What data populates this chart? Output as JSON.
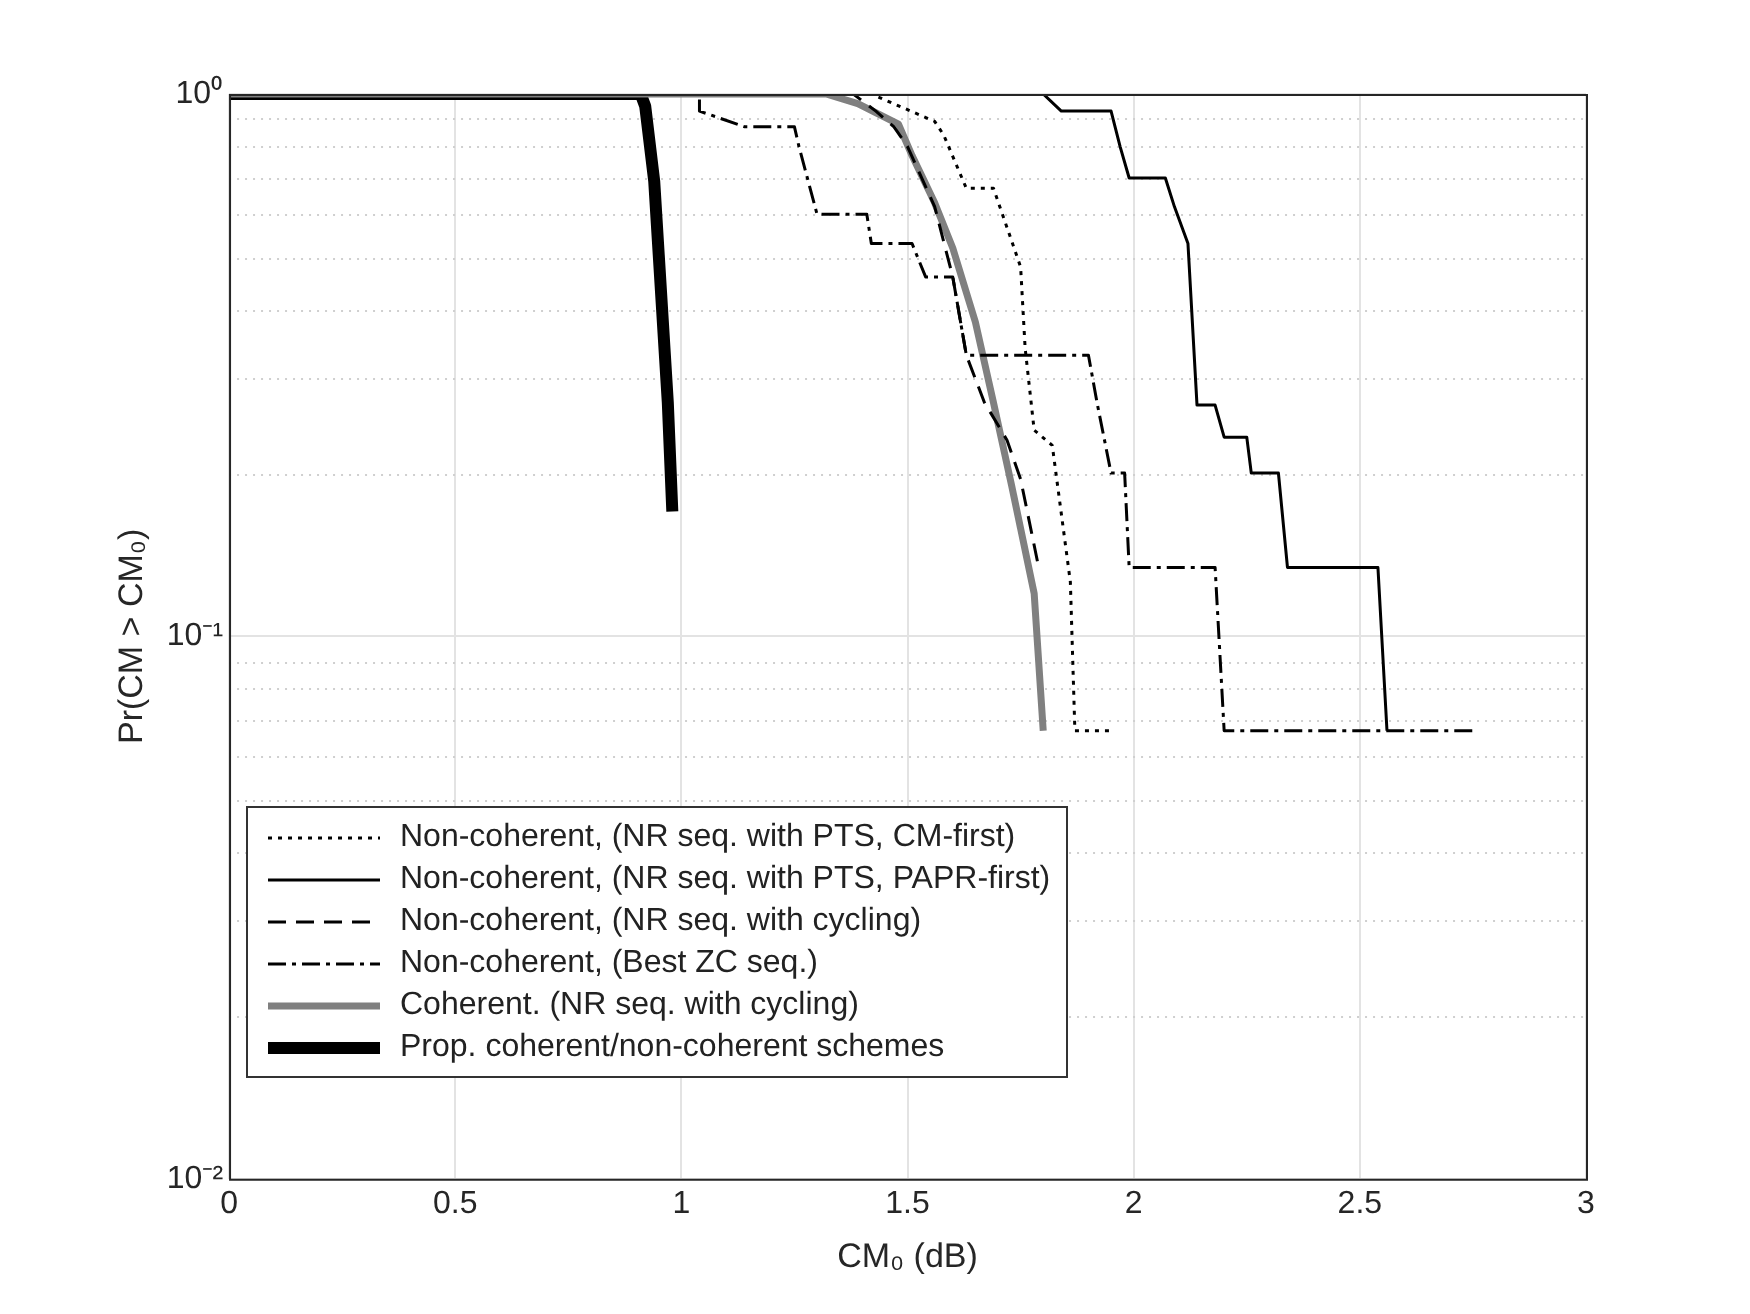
{
  "chart_data": {
    "type": "line",
    "xlabel": "CM₀ (dB)",
    "ylabel": "Pr(CM > CM₀)",
    "xlim": [
      0,
      3
    ],
    "xticks": [
      0,
      0.5,
      1,
      1.5,
      2,
      2.5,
      3
    ],
    "ylim": [
      0.01,
      1
    ],
    "yticks": [
      {
        "value": 0.01,
        "label": "10⁻²"
      },
      {
        "value": 0.1,
        "label": "10⁻¹"
      },
      {
        "value": 1,
        "label": "10⁰"
      }
    ],
    "log": "y",
    "grid": true,
    "legend": "bottom left",
    "marker": "none",
    "series": [
      {
        "name": "Non-coherent, (NR seq. with PTS, CM-first)",
        "color": "#000000",
        "line_style": "dotted",
        "x": [
          0,
          1.42,
          1.56,
          1.58,
          1.63,
          1.69,
          1.75,
          1.76,
          1.78,
          1.82,
          1.86,
          1.87,
          1.95
        ],
        "values": [
          1,
          1,
          0.89,
          0.84,
          0.67,
          0.67,
          0.48,
          0.34,
          0.24,
          0.225,
          0.126,
          0.067,
          0.067
        ]
      },
      {
        "name": "Non-coherent, (NR seq. with PTS, PAPR-first)",
        "color": "#000000",
        "line_style": "solid",
        "x": [
          0,
          1.8,
          1.84,
          1.95,
          1.97,
          1.99,
          2.07,
          2.09,
          2.12,
          2.14,
          2.18,
          2.2,
          2.25,
          2.26,
          2.32,
          2.34,
          2.54,
          2.56
        ],
        "values": [
          1,
          1,
          0.93,
          0.93,
          0.8,
          0.7,
          0.7,
          0.62,
          0.53,
          0.267,
          0.267,
          0.233,
          0.233,
          0.2,
          0.2,
          0.134,
          0.134,
          0.067
        ]
      },
      {
        "name": "Non-coherent, (NR seq. with cycling)",
        "color": "#000000",
        "line_style": "dashed",
        "x": [
          0,
          1.38,
          1.43,
          1.47,
          1.5,
          1.56,
          1.6,
          1.63,
          1.67,
          1.72,
          1.75,
          1.79
        ],
        "values": [
          1,
          1,
          0.93,
          0.87,
          0.8,
          0.62,
          0.46,
          0.33,
          0.27,
          0.23,
          0.195,
          0.134
        ]
      },
      {
        "name": "Non-coherent, (Best ZC seq.)",
        "color": "#000000",
        "line_style": "dashdot",
        "x": [
          0,
          1.04,
          1.04,
          1.14,
          1.25,
          1.26,
          1.3,
          1.41,
          1.42,
          1.51,
          1.54,
          1.6,
          1.63,
          1.9,
          1.92,
          1.95,
          1.98,
          1.99,
          2.18,
          2.2,
          2.75
        ],
        "values": [
          1,
          1,
          0.93,
          0.87,
          0.87,
          0.8,
          0.6,
          0.6,
          0.53,
          0.53,
          0.46,
          0.46,
          0.33,
          0.33,
          0.267,
          0.2,
          0.2,
          0.134,
          0.134,
          0.067,
          0.067
        ]
      },
      {
        "name": "Coherent. (NR seq. with cycling)",
        "color": "#808080",
        "line_style": "solid",
        "x": [
          0,
          1.32,
          1.39,
          1.48,
          1.51,
          1.56,
          1.6,
          1.65,
          1.69,
          1.73,
          1.78,
          1.8
        ],
        "values": [
          1,
          1,
          0.96,
          0.88,
          0.77,
          0.63,
          0.52,
          0.38,
          0.27,
          0.19,
          0.12,
          0.067
        ]
      },
      {
        "name": "Prop. coherent/non-coherent schemes",
        "color": "#000000",
        "line_style": "solid",
        "x": [
          0,
          0.91,
          0.92,
          0.94,
          0.97,
          0.98
        ],
        "values": [
          1,
          1,
          0.95,
          0.69,
          0.27,
          0.17
        ]
      }
    ]
  }
}
